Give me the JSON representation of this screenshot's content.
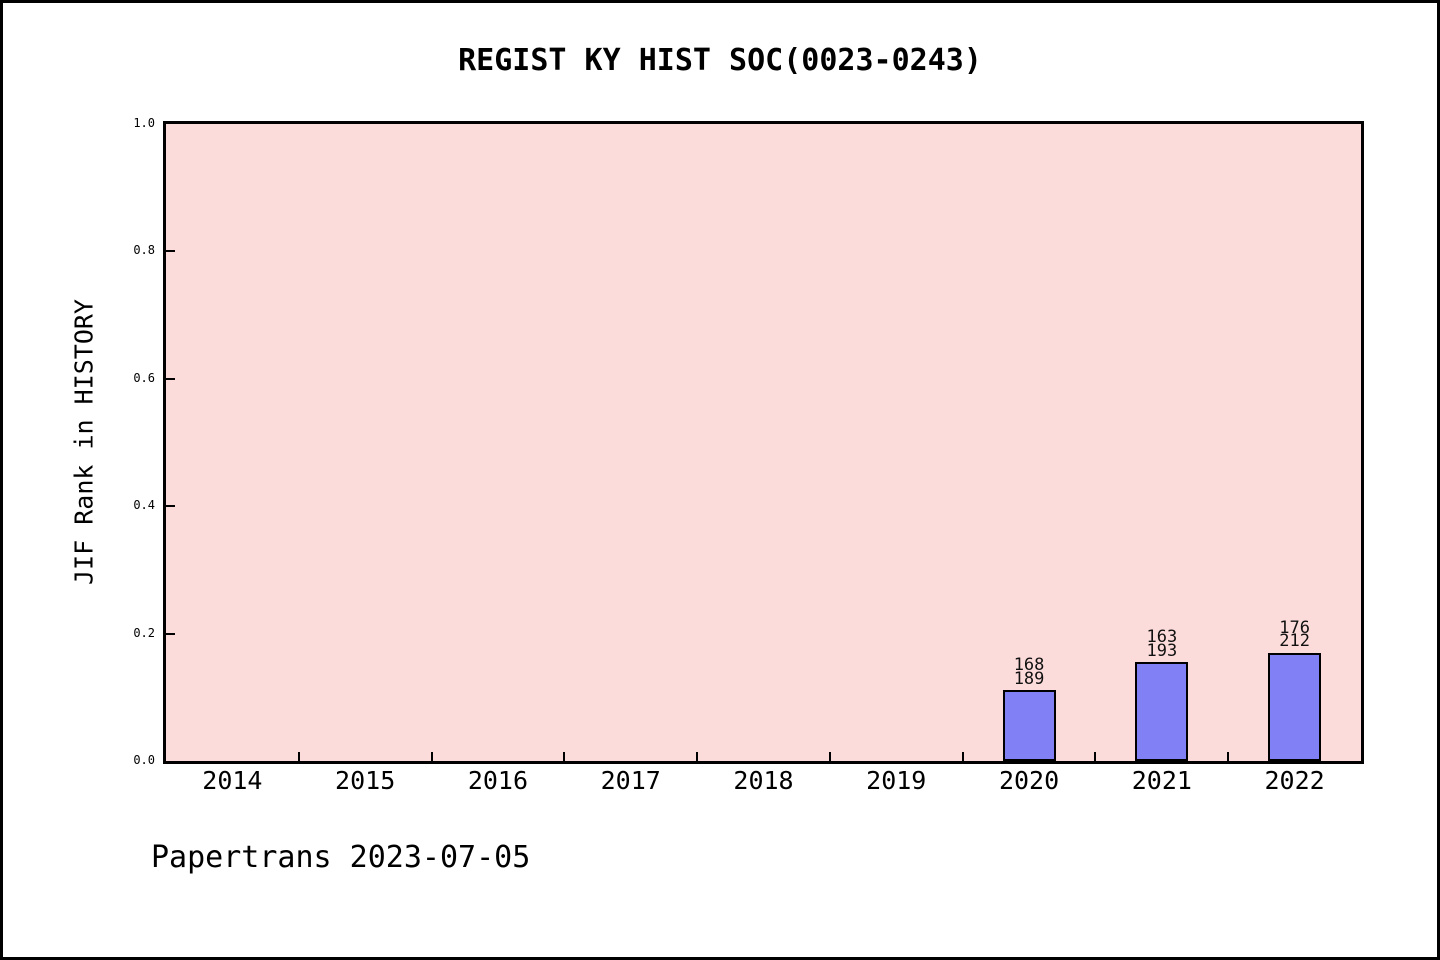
{
  "chart_data": {
    "type": "bar",
    "title": "REGIST KY HIST SOC(0023-0243)",
    "ylabel": "JIF Rank in HISTORY",
    "xlabel": "",
    "footer": "Papertrans 2023-07-05",
    "categories": [
      "2014",
      "2015",
      "2016",
      "2017",
      "2018",
      "2019",
      "2020",
      "2021",
      "2022"
    ],
    "values": [
      null,
      null,
      null,
      null,
      null,
      null,
      0.1111,
      0.1554,
      0.1698
    ],
    "bar_labels": [
      null,
      null,
      null,
      null,
      null,
      null,
      [
        "168",
        "189"
      ],
      [
        "163",
        "193"
      ],
      [
        "176",
        "212"
      ]
    ],
    "yticks": [
      0.0,
      0.2,
      0.4,
      0.6,
      0.8,
      1.0
    ],
    "ylim": [
      0,
      1
    ],
    "grid": false,
    "legend": null,
    "colors": {
      "plot_bg": "#fcdcda",
      "bar_fill": "#8181f5",
      "bar_border": "#000000",
      "axis": "#000000",
      "page_bg": "#ffffff",
      "text": "#000000"
    }
  }
}
